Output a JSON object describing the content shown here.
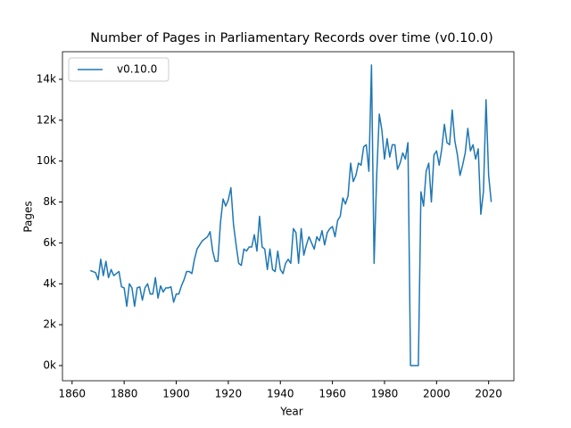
{
  "chart_data": {
    "type": "line",
    "title": "Number of Pages in Parliamentary Records over time (v0.10.0)",
    "x_label": "Year",
    "y_label": "Pages",
    "x": [
      1867,
      1868,
      1869,
      1870,
      1871,
      1872,
      1873,
      1874,
      1875,
      1876,
      1877,
      1878,
      1879,
      1880,
      1881,
      1882,
      1883,
      1884,
      1885,
      1886,
      1887,
      1888,
      1889,
      1890,
      1891,
      1892,
      1893,
      1894,
      1895,
      1896,
      1897,
      1898,
      1899,
      1900,
      1901,
      1902,
      1903,
      1904,
      1905,
      1906,
      1907,
      1908,
      1909,
      1910,
      1911,
      1912,
      1913,
      1914,
      1915,
      1916,
      1917,
      1918,
      1919,
      1920,
      1921,
      1922,
      1923,
      1924,
      1925,
      1926,
      1927,
      1928,
      1929,
      1930,
      1931,
      1932,
      1933,
      1934,
      1935,
      1936,
      1937,
      1938,
      1939,
      1940,
      1941,
      1942,
      1943,
      1944,
      1945,
      1946,
      1947,
      1948,
      1949,
      1950,
      1951,
      1952,
      1953,
      1954,
      1955,
      1956,
      1957,
      1958,
      1959,
      1960,
      1961,
      1962,
      1963,
      1964,
      1965,
      1966,
      1967,
      1968,
      1969,
      1970,
      1971,
      1972,
      1973,
      1974,
      1975,
      1976,
      1977,
      1978,
      1979,
      1980,
      1981,
      1982,
      1983,
      1984,
      1985,
      1986,
      1987,
      1988,
      1989,
      1990,
      1991,
      1992,
      1993,
      1994,
      1995,
      1996,
      1997,
      1998,
      1999,
      2000,
      2001,
      2002,
      2003,
      2004,
      2005,
      2006,
      2007,
      2008,
      2009,
      2010,
      2011,
      2012,
      2013,
      2014,
      2015,
      2016,
      2017,
      2018,
      2019,
      2020,
      2021
    ],
    "series": [
      {
        "name": "v0.10.0",
        "color": "#1f77b4",
        "values": [
          4650,
          4600,
          4550,
          4200,
          5200,
          4400,
          5100,
          4300,
          4700,
          4400,
          4500,
          4600,
          3850,
          3800,
          2900,
          4000,
          3800,
          2900,
          3800,
          3850,
          3200,
          3800,
          4000,
          3500,
          3500,
          4300,
          3300,
          3900,
          3600,
          3800,
          3800,
          3850,
          3100,
          3500,
          3500,
          3900,
          4200,
          4600,
          4600,
          4500,
          5200,
          5700,
          5900,
          6100,
          6200,
          6300,
          6550,
          5600,
          5100,
          5100,
          7000,
          8150,
          7800,
          8100,
          8700,
          6900,
          5900,
          5000,
          4900,
          5700,
          5600,
          5800,
          5800,
          6400,
          5600,
          7300,
          5800,
          5700,
          4700,
          5700,
          4700,
          4600,
          5600,
          4700,
          4500,
          5000,
          5200,
          5000,
          6700,
          6500,
          5000,
          6700,
          5400,
          5900,
          6300,
          6000,
          5700,
          6300,
          6100,
          6600,
          5900,
          6500,
          6700,
          6800,
          6300,
          7100,
          7300,
          8200,
          7900,
          8300,
          9900,
          9000,
          9300,
          9900,
          9800,
          10700,
          10800,
          9500,
          14700,
          5000,
          9300,
          12300,
          11500,
          10100,
          11100,
          10200,
          10800,
          10800,
          9600,
          9900,
          10400,
          10100,
          10900,
          0,
          0,
          0,
          0,
          8500,
          7800,
          9500,
          9900,
          8000,
          10300,
          10500,
          9800,
          10600,
          11800,
          10900,
          10800,
          12500,
          11000,
          10300,
          9300,
          9800,
          10400,
          11600,
          10500,
          10800,
          10100,
          10600,
          7400,
          8500,
          13000,
          9300,
          8000
        ]
      }
    ],
    "xlim": [
      1856.3,
      2029.7
    ],
    "ylim": [
      -741,
      15350
    ],
    "xticks": [
      1860,
      1880,
      1900,
      1920,
      1940,
      1960,
      1980,
      2000,
      2020
    ],
    "yticks": [
      {
        "value": 0,
        "label": "0k"
      },
      {
        "value": 2000,
        "label": "2k"
      },
      {
        "value": 4000,
        "label": "4k"
      },
      {
        "value": 6000,
        "label": "6k"
      },
      {
        "value": 8000,
        "label": "8k"
      },
      {
        "value": 10000,
        "label": "10k"
      },
      {
        "value": 12000,
        "label": "12k"
      },
      {
        "value": 14000,
        "label": "14k"
      }
    ],
    "legend": "upper left"
  }
}
